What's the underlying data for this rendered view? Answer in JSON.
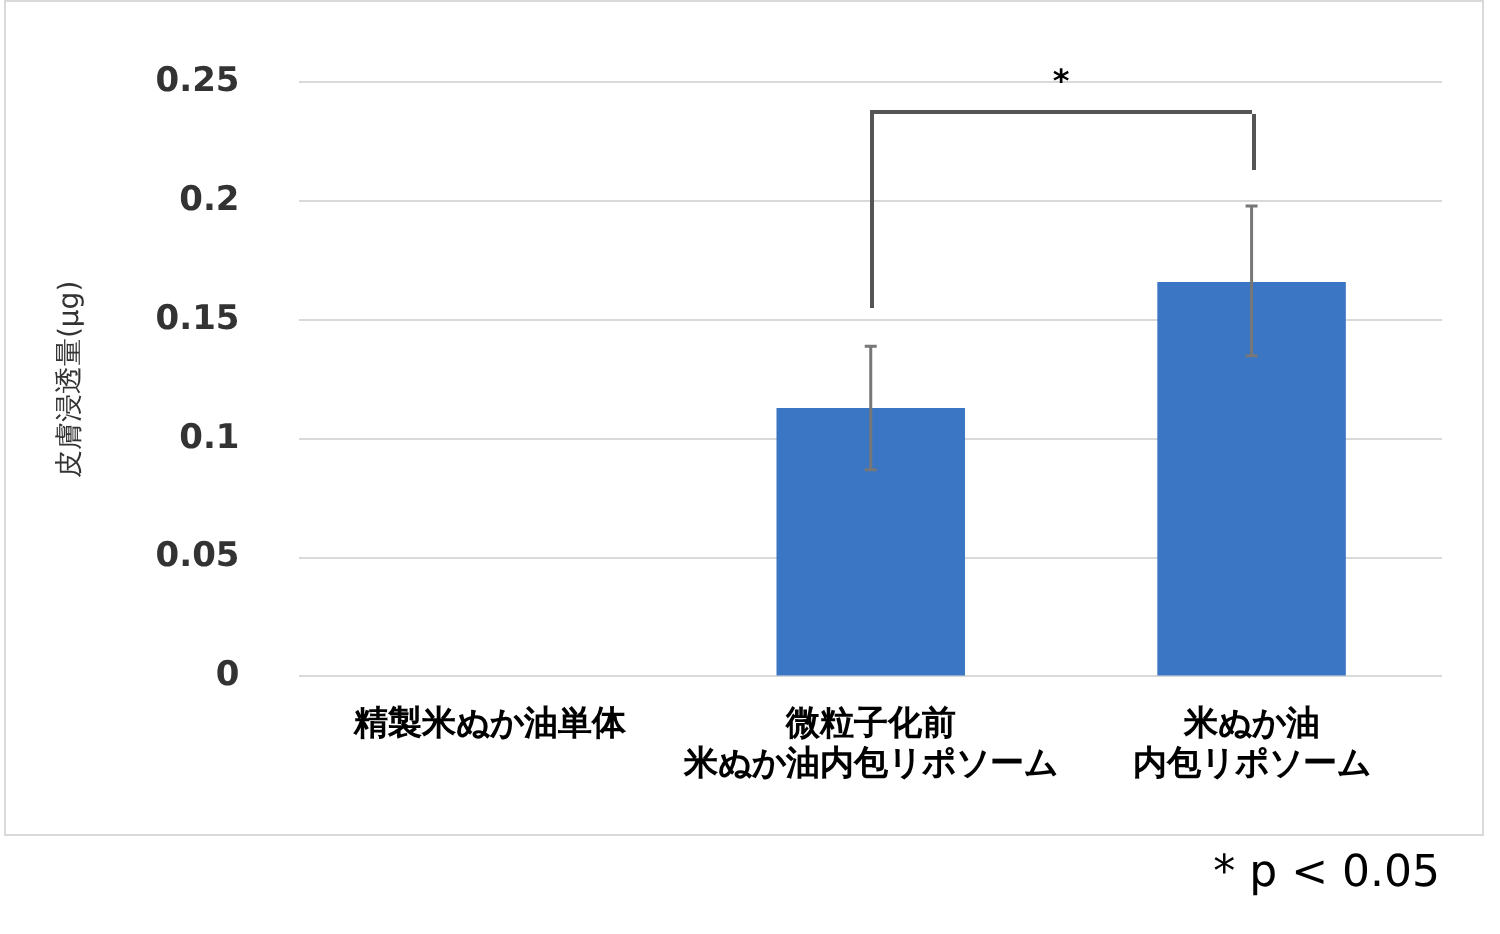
{
  "chart_data": {
    "type": "bar",
    "ylabel": "皮膚浸透量(μg)",
    "categories": [
      "精製米ぬか油単体",
      "微粒子化前米ぬか油内包リポソーム",
      "米ぬか油内包リポソーム"
    ],
    "values": [
      0,
      0.113,
      0.166
    ],
    "errors": [
      null,
      [
        0.087,
        0.139
      ],
      [
        0.135,
        0.198
      ]
    ],
    "color": "#3b76c4",
    "ylim": [
      0,
      0.25
    ],
    "yticks": [
      0,
      0.05,
      0.1,
      0.15,
      0.2,
      0.25
    ],
    "grid": "y",
    "legend": false,
    "annotations": [
      "*",
      "* p < 0.05"
    ]
  }
}
